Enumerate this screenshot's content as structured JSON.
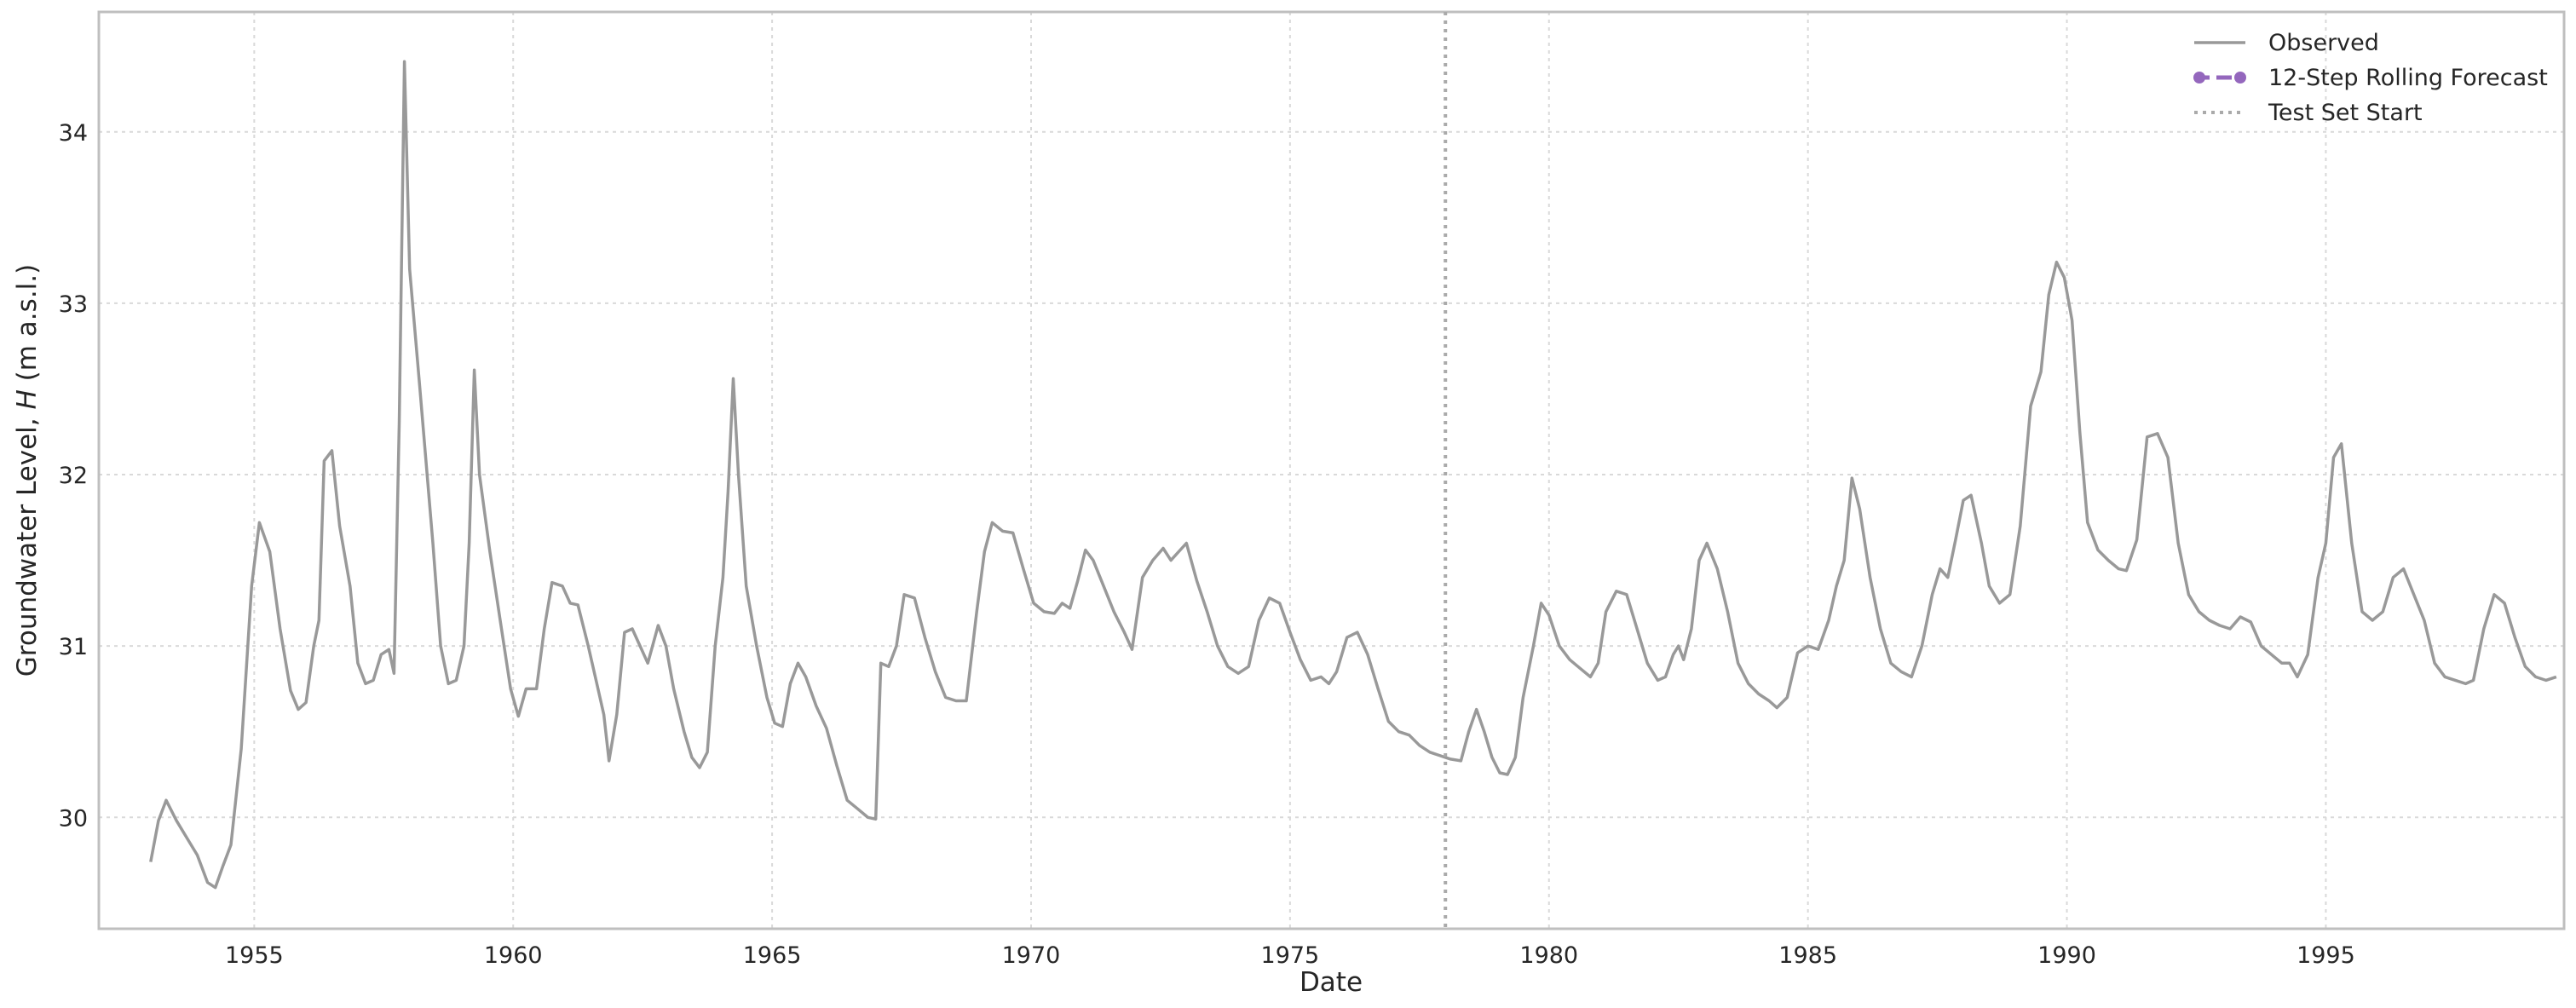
{
  "chart_data": {
    "type": "line",
    "xlabel": "Date",
    "ylabel": {
      "prefix": "Groundwater Level, ",
      "symbol": "H",
      "suffix": " (m a.s.l.)"
    },
    "xlim": [
      1952,
      1999.6
    ],
    "ylim": [
      29.35,
      34.7
    ],
    "xticks": [
      1955,
      1960,
      1965,
      1970,
      1975,
      1980,
      1985,
      1990,
      1995
    ],
    "yticks": [
      30,
      31,
      32,
      33,
      34
    ],
    "grid": true,
    "legend_position": "top-right",
    "colors": {
      "observed": "#999999",
      "forecast": "#9467bd",
      "test_start": "#aaaaaa",
      "grid": "#d9d9d9",
      "frame": "#bfbfbf"
    },
    "series": [
      {
        "name": "Observed",
        "style": "line",
        "points": [
          [
            1953.0,
            29.74
          ],
          [
            1953.15,
            29.98
          ],
          [
            1953.3,
            30.1
          ],
          [
            1953.5,
            29.98
          ],
          [
            1953.7,
            29.88
          ],
          [
            1953.9,
            29.78
          ],
          [
            1954.1,
            29.62
          ],
          [
            1954.25,
            29.59
          ],
          [
            1954.4,
            29.72
          ],
          [
            1954.55,
            29.84
          ],
          [
            1954.75,
            30.4
          ],
          [
            1954.95,
            31.35
          ],
          [
            1955.1,
            31.72
          ],
          [
            1955.3,
            31.55
          ],
          [
            1955.5,
            31.1
          ],
          [
            1955.7,
            30.74
          ],
          [
            1955.85,
            30.63
          ],
          [
            1956.0,
            30.67
          ],
          [
            1956.15,
            31.0
          ],
          [
            1956.25,
            31.15
          ],
          [
            1956.35,
            32.08
          ],
          [
            1956.5,
            32.14
          ],
          [
            1956.65,
            31.7
          ],
          [
            1956.85,
            31.35
          ],
          [
            1957.0,
            30.9
          ],
          [
            1957.15,
            30.78
          ],
          [
            1957.3,
            30.8
          ],
          [
            1957.45,
            30.95
          ],
          [
            1957.6,
            30.98
          ],
          [
            1957.7,
            30.84
          ],
          [
            1957.8,
            32.3
          ],
          [
            1957.9,
            34.41
          ],
          [
            1958.0,
            33.2
          ],
          [
            1958.2,
            32.5
          ],
          [
            1958.45,
            31.6
          ],
          [
            1958.6,
            31.0
          ],
          [
            1958.75,
            30.78
          ],
          [
            1958.9,
            30.8
          ],
          [
            1959.05,
            31.0
          ],
          [
            1959.15,
            31.6
          ],
          [
            1959.25,
            32.61
          ],
          [
            1959.35,
            32.0
          ],
          [
            1959.55,
            31.55
          ],
          [
            1959.75,
            31.15
          ],
          [
            1959.95,
            30.75
          ],
          [
            1960.1,
            30.59
          ],
          [
            1960.25,
            30.75
          ],
          [
            1960.45,
            30.75
          ],
          [
            1960.6,
            31.1
          ],
          [
            1960.75,
            31.37
          ],
          [
            1960.95,
            31.35
          ],
          [
            1961.1,
            31.25
          ],
          [
            1961.25,
            31.24
          ],
          [
            1961.45,
            31.0
          ],
          [
            1961.6,
            30.8
          ],
          [
            1961.75,
            30.6
          ],
          [
            1961.85,
            30.33
          ],
          [
            1962.0,
            30.6
          ],
          [
            1962.15,
            31.08
          ],
          [
            1962.3,
            31.1
          ],
          [
            1962.45,
            31.0
          ],
          [
            1962.6,
            30.9
          ],
          [
            1962.8,
            31.12
          ],
          [
            1962.95,
            31.0
          ],
          [
            1963.1,
            30.75
          ],
          [
            1963.3,
            30.5
          ],
          [
            1963.45,
            30.35
          ],
          [
            1963.6,
            30.29
          ],
          [
            1963.75,
            30.38
          ],
          [
            1963.9,
            31.0
          ],
          [
            1964.05,
            31.4
          ],
          [
            1964.15,
            31.9
          ],
          [
            1964.25,
            32.56
          ],
          [
            1964.35,
            32.0
          ],
          [
            1964.5,
            31.35
          ],
          [
            1964.7,
            31.0
          ],
          [
            1964.9,
            30.7
          ],
          [
            1965.05,
            30.55
          ],
          [
            1965.2,
            30.53
          ],
          [
            1965.35,
            30.78
          ],
          [
            1965.5,
            30.9
          ],
          [
            1965.65,
            30.82
          ],
          [
            1965.85,
            30.65
          ],
          [
            1966.05,
            30.52
          ],
          [
            1966.25,
            30.3
          ],
          [
            1966.45,
            30.1
          ],
          [
            1966.65,
            30.05
          ],
          [
            1966.85,
            30.0
          ],
          [
            1967.0,
            29.99
          ],
          [
            1967.1,
            30.9
          ],
          [
            1967.25,
            30.88
          ],
          [
            1967.4,
            31.0
          ],
          [
            1967.55,
            31.3
          ],
          [
            1967.75,
            31.28
          ],
          [
            1967.95,
            31.05
          ],
          [
            1968.15,
            30.85
          ],
          [
            1968.35,
            30.7
          ],
          [
            1968.55,
            30.68
          ],
          [
            1968.75,
            30.68
          ],
          [
            1968.95,
            31.2
          ],
          [
            1969.1,
            31.55
          ],
          [
            1969.25,
            31.72
          ],
          [
            1969.45,
            31.67
          ],
          [
            1969.65,
            31.66
          ],
          [
            1969.85,
            31.45
          ],
          [
            1970.05,
            31.25
          ],
          [
            1970.25,
            31.2
          ],
          [
            1970.45,
            31.19
          ],
          [
            1970.6,
            31.25
          ],
          [
            1970.75,
            31.22
          ],
          [
            1970.9,
            31.38
          ],
          [
            1971.05,
            31.56
          ],
          [
            1971.2,
            31.5
          ],
          [
            1971.4,
            31.35
          ],
          [
            1971.6,
            31.2
          ],
          [
            1971.8,
            31.08
          ],
          [
            1971.95,
            30.98
          ],
          [
            1972.15,
            31.4
          ],
          [
            1972.35,
            31.5
          ],
          [
            1972.55,
            31.57
          ],
          [
            1972.7,
            31.5
          ],
          [
            1972.85,
            31.55
          ],
          [
            1973.0,
            31.6
          ],
          [
            1973.2,
            31.38
          ],
          [
            1973.4,
            31.2
          ],
          [
            1973.6,
            31.0
          ],
          [
            1973.8,
            30.88
          ],
          [
            1974.0,
            30.84
          ],
          [
            1974.2,
            30.88
          ],
          [
            1974.4,
            31.15
          ],
          [
            1974.6,
            31.28
          ],
          [
            1974.8,
            31.25
          ],
          [
            1975.0,
            31.08
          ],
          [
            1975.2,
            30.92
          ],
          [
            1975.4,
            30.8
          ],
          [
            1975.6,
            30.82
          ],
          [
            1975.75,
            30.78
          ],
          [
            1975.9,
            30.85
          ],
          [
            1976.1,
            31.05
          ],
          [
            1976.3,
            31.08
          ],
          [
            1976.5,
            30.95
          ],
          [
            1976.7,
            30.75
          ],
          [
            1976.9,
            30.56
          ],
          [
            1977.1,
            30.5
          ],
          [
            1977.3,
            30.48
          ],
          [
            1977.5,
            30.42
          ],
          [
            1977.7,
            30.38
          ],
          [
            1977.9,
            30.36
          ],
          [
            1978.1,
            30.34
          ],
          [
            1978.3,
            30.33
          ],
          [
            1978.45,
            30.5
          ],
          [
            1978.6,
            30.63
          ],
          [
            1978.75,
            30.5
          ],
          [
            1978.9,
            30.35
          ],
          [
            1979.05,
            30.26
          ],
          [
            1979.2,
            30.25
          ],
          [
            1979.35,
            30.35
          ],
          [
            1979.5,
            30.7
          ],
          [
            1979.7,
            31.0
          ],
          [
            1979.85,
            31.25
          ],
          [
            1980.0,
            31.18
          ],
          [
            1980.2,
            31.0
          ],
          [
            1980.4,
            30.92
          ],
          [
            1980.6,
            30.87
          ],
          [
            1980.8,
            30.82
          ],
          [
            1980.95,
            30.9
          ],
          [
            1981.1,
            31.2
          ],
          [
            1981.3,
            31.32
          ],
          [
            1981.5,
            31.3
          ],
          [
            1981.7,
            31.1
          ],
          [
            1981.9,
            30.9
          ],
          [
            1982.1,
            30.8
          ],
          [
            1982.25,
            30.82
          ],
          [
            1982.4,
            30.95
          ],
          [
            1982.5,
            31.0
          ],
          [
            1982.6,
            30.92
          ],
          [
            1982.75,
            31.1
          ],
          [
            1982.9,
            31.5
          ],
          [
            1983.05,
            31.6
          ],
          [
            1983.25,
            31.45
          ],
          [
            1983.45,
            31.2
          ],
          [
            1983.65,
            30.9
          ],
          [
            1983.85,
            30.78
          ],
          [
            1984.05,
            30.72
          ],
          [
            1984.25,
            30.68
          ],
          [
            1984.4,
            30.64
          ],
          [
            1984.6,
            30.7
          ],
          [
            1984.8,
            30.96
          ],
          [
            1985.0,
            31.0
          ],
          [
            1985.2,
            30.98
          ],
          [
            1985.4,
            31.15
          ],
          [
            1985.55,
            31.35
          ],
          [
            1985.7,
            31.5
          ],
          [
            1985.85,
            31.98
          ],
          [
            1986.0,
            31.8
          ],
          [
            1986.2,
            31.4
          ],
          [
            1986.4,
            31.1
          ],
          [
            1986.6,
            30.9
          ],
          [
            1986.8,
            30.85
          ],
          [
            1987.0,
            30.82
          ],
          [
            1987.2,
            31.0
          ],
          [
            1987.4,
            31.3
          ],
          [
            1987.55,
            31.45
          ],
          [
            1987.7,
            31.4
          ],
          [
            1987.85,
            31.62
          ],
          [
            1988.0,
            31.85
          ],
          [
            1988.15,
            31.88
          ],
          [
            1988.35,
            31.6
          ],
          [
            1988.5,
            31.35
          ],
          [
            1988.7,
            31.25
          ],
          [
            1988.9,
            31.3
          ],
          [
            1989.1,
            31.7
          ],
          [
            1989.3,
            32.4
          ],
          [
            1989.5,
            32.6
          ],
          [
            1989.65,
            33.05
          ],
          [
            1989.8,
            33.24
          ],
          [
            1989.95,
            33.15
          ],
          [
            1990.1,
            32.9
          ],
          [
            1990.25,
            32.25
          ],
          [
            1990.4,
            31.72
          ],
          [
            1990.6,
            31.56
          ],
          [
            1990.8,
            31.5
          ],
          [
            1991.0,
            31.45
          ],
          [
            1991.15,
            31.44
          ],
          [
            1991.35,
            31.62
          ],
          [
            1991.55,
            32.22
          ],
          [
            1991.75,
            32.24
          ],
          [
            1991.95,
            32.1
          ],
          [
            1992.15,
            31.6
          ],
          [
            1992.35,
            31.3
          ],
          [
            1992.55,
            31.2
          ],
          [
            1992.75,
            31.15
          ],
          [
            1992.95,
            31.12
          ],
          [
            1993.15,
            31.1
          ],
          [
            1993.35,
            31.17
          ],
          [
            1993.55,
            31.14
          ],
          [
            1993.75,
            31.0
          ],
          [
            1993.95,
            30.95
          ],
          [
            1994.15,
            30.9
          ],
          [
            1994.3,
            30.9
          ],
          [
            1994.45,
            30.82
          ],
          [
            1994.65,
            30.95
          ],
          [
            1994.85,
            31.4
          ],
          [
            1995.0,
            31.6
          ],
          [
            1995.15,
            32.1
          ],
          [
            1995.3,
            32.18
          ],
          [
            1995.5,
            31.6
          ],
          [
            1995.7,
            31.2
          ],
          [
            1995.9,
            31.15
          ],
          [
            1996.1,
            31.2
          ],
          [
            1996.3,
            31.4
          ],
          [
            1996.5,
            31.45
          ],
          [
            1996.7,
            31.3
          ],
          [
            1996.9,
            31.15
          ],
          [
            1997.1,
            30.9
          ],
          [
            1997.3,
            30.82
          ],
          [
            1997.5,
            30.8
          ],
          [
            1997.7,
            30.78
          ],
          [
            1997.85,
            30.8
          ],
          [
            1998.05,
            31.1
          ],
          [
            1998.25,
            31.3
          ],
          [
            1998.45,
            31.25
          ],
          [
            1998.65,
            31.05
          ],
          [
            1998.85,
            30.88
          ],
          [
            1999.05,
            30.82
          ],
          [
            1999.25,
            30.8
          ],
          [
            1999.45,
            30.82
          ]
        ]
      },
      {
        "name": "12-Step Rolling Forecast",
        "style": "dashed-markers",
        "points": []
      },
      {
        "name": "Test Set Start",
        "style": "dotted-vline",
        "x": 1978.0
      }
    ]
  }
}
